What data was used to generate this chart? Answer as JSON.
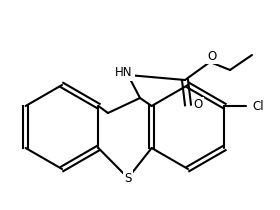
{
  "background_color": "#ffffff",
  "line_color": "#000000",
  "line_width": 1.5,
  "font_size": 8.5,
  "figsize": [
    2.8,
    2.1
  ],
  "dpi": 100,
  "xlim": [
    0,
    280
  ],
  "ylim": [
    0,
    210
  ]
}
